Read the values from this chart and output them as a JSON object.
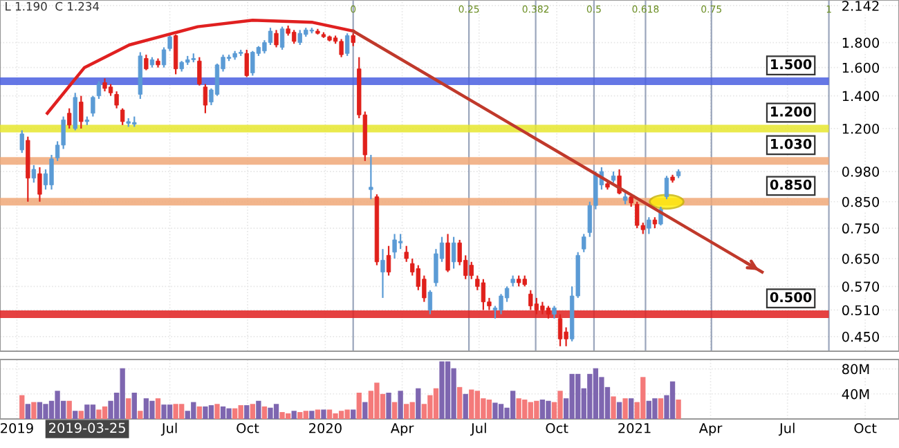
{
  "chart_data": [
    {
      "type": "candlestick",
      "annotations": [
        "L 1.190  C 1.234"
      ],
      "x": [
        "2019-01-07",
        "2019-01-14",
        "2019-01-21",
        "2019-01-28",
        "2019-02-04",
        "2019-02-11",
        "2019-02-18",
        "2019-02-25",
        "2019-03-04",
        "2019-03-11",
        "2019-03-18",
        "2019-03-25",
        "2019-04-01",
        "2019-04-08",
        "2019-04-15",
        "2019-04-22",
        "2019-04-29",
        "2019-05-06",
        "2019-05-13",
        "2019-05-20",
        "2019-05-27",
        "2019-06-03",
        "2019-06-10",
        "2019-06-17",
        "2019-06-24",
        "2019-07-01",
        "2019-07-08",
        "2019-07-15",
        "2019-07-22",
        "2019-07-29",
        "2019-08-05",
        "2019-08-12",
        "2019-08-19",
        "2019-08-26",
        "2019-09-02",
        "2019-09-09",
        "2019-09-16",
        "2019-09-23",
        "2019-09-30",
        "2019-10-07",
        "2019-10-14",
        "2019-10-21",
        "2019-10-28",
        "2019-11-04",
        "2019-11-11",
        "2019-11-18",
        "2019-11-25",
        "2019-12-02",
        "2019-12-09",
        "2019-12-16",
        "2019-12-23",
        "2019-12-30",
        "2020-01-06",
        "2020-01-13",
        "2020-01-20",
        "2020-01-27",
        "2020-02-03",
        "2020-02-10",
        "2020-02-17",
        "2020-02-24",
        "2020-03-02",
        "2020-03-09",
        "2020-03-16",
        "2020-03-23",
        "2020-03-30",
        "2020-04-06",
        "2020-04-13",
        "2020-04-20",
        "2020-04-27",
        "2020-05-04",
        "2020-05-11",
        "2020-05-18",
        "2020-05-25",
        "2020-06-01",
        "2020-06-08",
        "2020-06-15",
        "2020-06-22",
        "2020-06-29",
        "2020-07-06",
        "2020-07-13",
        "2020-07-20",
        "2020-07-27",
        "2020-08-03",
        "2020-08-10",
        "2020-08-17",
        "2020-08-24",
        "2020-08-31",
        "2020-09-07",
        "2020-09-14",
        "2020-09-21",
        "2020-09-28",
        "2020-10-05",
        "2020-10-12",
        "2020-10-19",
        "2020-10-26",
        "2020-11-02",
        "2020-11-09",
        "2020-11-16",
        "2020-11-23",
        "2020-11-30",
        "2020-12-07",
        "2020-12-14",
        "2020-12-21",
        "2020-12-28",
        "2021-01-04",
        "2021-01-11",
        "2021-01-18",
        "2021-01-25",
        "2021-02-01",
        "2021-02-08",
        "2021-02-15",
        "2021-02-22"
      ],
      "ohlc": [
        [
          1.085,
          1.19,
          1.07,
          1.17
        ],
        [
          1.135,
          1.155,
          0.85,
          0.95
        ],
        [
          0.95,
          1.01,
          0.93,
          0.99
        ],
        [
          0.97,
          1.0,
          0.85,
          0.88
        ],
        [
          0.92,
          0.99,
          0.9,
          0.97
        ],
        [
          0.92,
          1.06,
          0.9,
          1.04
        ],
        [
          1.045,
          1.13,
          1.03,
          1.11
        ],
        [
          1.11,
          1.27,
          1.09,
          1.25
        ],
        [
          1.29,
          1.32,
          1.2,
          1.22
        ],
        [
          1.2,
          1.42,
          1.19,
          1.39
        ],
        [
          1.36,
          1.4,
          1.2,
          1.24
        ],
        [
          1.24,
          1.27,
          1.22,
          1.25
        ],
        [
          1.29,
          1.4,
          1.27,
          1.39
        ],
        [
          1.4,
          1.5,
          1.38,
          1.48
        ],
        [
          1.49,
          1.52,
          1.43,
          1.45
        ],
        [
          1.46,
          1.48,
          1.4,
          1.42
        ],
        [
          1.41,
          1.43,
          1.32,
          1.34
        ],
        [
          1.31,
          1.32,
          1.22,
          1.24
        ],
        [
          1.23,
          1.26,
          1.21,
          1.24
        ],
        [
          1.225,
          1.27,
          1.21,
          1.235
        ],
        [
          1.41,
          1.72,
          1.38,
          1.69
        ],
        [
          1.67,
          1.7,
          1.58,
          1.59
        ],
        [
          1.62,
          1.68,
          1.6,
          1.66
        ],
        [
          1.65,
          1.67,
          1.6,
          1.62
        ],
        [
          1.62,
          1.76,
          1.6,
          1.74
        ],
        [
          1.75,
          1.87,
          1.73,
          1.85
        ],
        [
          1.86,
          1.87,
          1.55,
          1.59
        ],
        [
          1.59,
          1.65,
          1.57,
          1.64
        ],
        [
          1.64,
          1.69,
          1.62,
          1.66
        ],
        [
          1.66,
          1.71,
          1.64,
          1.67
        ],
        [
          1.65,
          1.68,
          1.47,
          1.48
        ],
        [
          1.46,
          1.48,
          1.29,
          1.34
        ],
        [
          1.36,
          1.45,
          1.34,
          1.44
        ],
        [
          1.41,
          1.63,
          1.4,
          1.62
        ],
        [
          1.59,
          1.7,
          1.57,
          1.68
        ],
        [
          1.67,
          1.7,
          1.65,
          1.68
        ],
        [
          1.68,
          1.73,
          1.66,
          1.71
        ],
        [
          1.71,
          1.74,
          1.69,
          1.72
        ],
        [
          1.71,
          1.74,
          1.53,
          1.54
        ],
        [
          1.56,
          1.73,
          1.54,
          1.72
        ],
        [
          1.71,
          1.77,
          1.69,
          1.76
        ],
        [
          1.73,
          1.82,
          1.71,
          1.8
        ],
        [
          1.8,
          1.93,
          1.78,
          1.9
        ],
        [
          1.88,
          1.91,
          1.76,
          1.78
        ],
        [
          1.76,
          1.94,
          1.74,
          1.92
        ],
        [
          1.92,
          1.95,
          1.86,
          1.88
        ],
        [
          1.89,
          1.91,
          1.79,
          1.81
        ],
        [
          1.8,
          1.91,
          1.78,
          1.88
        ],
        [
          1.87,
          1.93,
          1.85,
          1.91
        ],
        [
          1.9,
          1.93,
          1.88,
          1.91
        ],
        [
          1.9,
          1.92,
          1.87,
          1.88
        ],
        [
          1.87,
          1.89,
          1.84,
          1.85
        ],
        [
          1.85,
          1.86,
          1.81,
          1.82
        ],
        [
          1.84,
          1.86,
          1.79,
          1.81
        ],
        [
          1.81,
          1.83,
          1.68,
          1.7
        ],
        [
          1.71,
          1.88,
          1.69,
          1.86
        ],
        [
          1.86,
          1.88,
          1.77,
          1.8
        ],
        [
          1.59,
          1.68,
          1.26,
          1.28
        ],
        [
          1.28,
          1.3,
          1.03,
          1.06
        ],
        [
          0.9,
          1.06,
          0.86,
          0.91
        ],
        [
          0.87,
          0.88,
          0.63,
          0.64
        ],
        [
          0.61,
          0.68,
          0.54,
          0.645
        ],
        [
          0.66,
          0.69,
          0.6,
          0.61
        ],
        [
          0.67,
          0.73,
          0.65,
          0.71
        ],
        [
          0.7,
          0.73,
          0.68,
          0.705
        ],
        [
          0.67,
          0.69,
          0.64,
          0.65
        ],
        [
          0.635,
          0.65,
          0.6,
          0.61
        ],
        [
          0.62,
          0.63,
          0.56,
          0.57
        ],
        [
          0.59,
          0.6,
          0.53,
          0.54
        ],
        [
          0.51,
          0.56,
          0.5,
          0.555
        ],
        [
          0.58,
          0.68,
          0.57,
          0.665
        ],
        [
          0.65,
          0.72,
          0.64,
          0.7
        ],
        [
          0.7,
          0.73,
          0.61,
          0.615
        ],
        [
          0.64,
          0.72,
          0.62,
          0.7
        ],
        [
          0.7,
          0.71,
          0.63,
          0.64
        ],
        [
          0.645,
          0.66,
          0.59,
          0.6
        ],
        [
          0.63,
          0.64,
          0.59,
          0.6
        ],
        [
          0.59,
          0.6,
          0.56,
          0.57
        ],
        [
          0.58,
          0.59,
          0.51,
          0.53
        ],
        [
          0.53,
          0.54,
          0.51,
          0.52
        ],
        [
          0.51,
          0.52,
          0.49,
          0.515
        ],
        [
          0.51,
          0.55,
          0.5,
          0.545
        ],
        [
          0.54,
          0.57,
          0.53,
          0.565
        ],
        [
          0.58,
          0.6,
          0.57,
          0.59
        ],
        [
          0.59,
          0.6,
          0.57,
          0.58
        ],
        [
          0.59,
          0.6,
          0.57,
          0.575
        ],
        [
          0.55,
          0.56,
          0.51,
          0.52
        ],
        [
          0.525,
          0.54,
          0.5,
          0.51
        ],
        [
          0.52,
          0.53,
          0.5,
          0.51
        ],
        [
          0.515,
          0.52,
          0.49,
          0.5
        ],
        [
          0.5,
          0.52,
          0.49,
          0.515
        ],
        [
          0.49,
          0.5,
          0.43,
          0.445
        ],
        [
          0.46,
          0.47,
          0.43,
          0.445
        ],
        [
          0.445,
          0.57,
          0.44,
          0.545
        ],
        [
          0.545,
          0.67,
          0.54,
          0.66
        ],
        [
          0.68,
          0.73,
          0.67,
          0.72
        ],
        [
          0.735,
          0.85,
          0.72,
          0.835
        ],
        [
          0.835,
          0.98,
          0.82,
          0.965
        ],
        [
          0.92,
          1.0,
          0.9,
          0.98
        ],
        [
          0.925,
          0.94,
          0.9,
          0.91
        ],
        [
          0.94,
          0.98,
          0.93,
          0.96
        ],
        [
          0.96,
          0.99,
          0.88,
          0.885
        ],
        [
          0.855,
          0.89,
          0.84,
          0.87
        ],
        [
          0.87,
          0.88,
          0.83,
          0.845
        ],
        [
          0.84,
          0.85,
          0.75,
          0.76
        ],
        [
          0.76,
          0.77,
          0.73,
          0.745
        ],
        [
          0.75,
          0.79,
          0.73,
          0.78
        ],
        [
          0.78,
          0.79,
          0.75,
          0.765
        ],
        [
          0.765,
          0.83,
          0.76,
          0.82
        ],
        [
          0.87,
          0.96,
          0.86,
          0.95
        ],
        [
          0.955,
          0.965,
          0.93,
          0.94
        ],
        [
          0.96,
          0.99,
          0.95,
          0.98
        ]
      ],
      "colors": [
        "#5b9bd5",
        "#e0201b",
        "#5b9bd5",
        "#e0201b",
        "#5b9bd5",
        "#5b9bd5",
        "#5b9bd5",
        "#5b9bd5",
        "#e0201b",
        "#5b9bd5",
        "#e0201b",
        "#5b9bd5",
        "#5b9bd5",
        "#5b9bd5",
        "#e0201b",
        "#e0201b",
        "#e0201b",
        "#e0201b",
        "#5b9bd5",
        "#5b9bd5",
        "#5b9bd5",
        "#e0201b",
        "#5b9bd5",
        "#e0201b",
        "#5b9bd5",
        "#5b9bd5",
        "#e0201b",
        "#5b9bd5",
        "#5b9bd5",
        "#5b9bd5",
        "#e0201b",
        "#e0201b",
        "#5b9bd5",
        "#5b9bd5",
        "#5b9bd5",
        "#5b9bd5",
        "#5b9bd5",
        "#5b9bd5",
        "#e0201b",
        "#5b9bd5",
        "#5b9bd5",
        "#5b9bd5",
        "#5b9bd5",
        "#e0201b",
        "#5b9bd5",
        "#e0201b",
        "#e0201b",
        "#5b9bd5",
        "#5b9bd5",
        "#5b9bd5",
        "#e0201b",
        "#e0201b",
        "#e0201b",
        "#e0201b",
        "#e0201b",
        "#5b9bd5",
        "#e0201b",
        "#e0201b",
        "#e0201b",
        "#5b9bd5",
        "#e0201b",
        "#5b9bd5",
        "#e0201b",
        "#5b9bd5",
        "#5b9bd5",
        "#e0201b",
        "#e0201b",
        "#e0201b",
        "#e0201b",
        "#5b9bd5",
        "#5b9bd5",
        "#5b9bd5",
        "#e0201b",
        "#5b9bd5",
        "#e0201b",
        "#e0201b",
        "#e0201b",
        "#e0201b",
        "#e0201b",
        "#e0201b",
        "#5b9bd5",
        "#5b9bd5",
        "#5b9bd5",
        "#5b9bd5",
        "#e0201b",
        "#e0201b",
        "#e0201b",
        "#e0201b",
        "#e0201b",
        "#e0201b",
        "#5b9bd5",
        "#e0201b",
        "#e0201b",
        "#5b9bd5",
        "#5b9bd5",
        "#5b9bd5",
        "#5b9bd5",
        "#5b9bd5",
        "#5b9bd5",
        "#e0201b",
        "#5b9bd5",
        "#e0201b",
        "#5b9bd5",
        "#e0201b",
        "#e0201b",
        "#e0201b",
        "#5b9bd5",
        "#e0201b",
        "#5b9bd5",
        "#5b9bd5",
        "#e0201b",
        "#5b9bd5"
      ],
      "series": [
        {
          "type": "line",
          "color": "#e02020",
          "x": [
            "2019-02-06",
            "2019-03-22",
            "2019-05-14",
            "2019-08-03",
            "2019-10-07",
            "2019-12-17",
            "2020-02-03"
          ],
          "values": [
            1.29,
            1.6,
            1.78,
            1.94,
            2.0,
            1.98,
            1.9
          ]
        },
        {
          "type": "line",
          "color": "#c0392b",
          "x": [
            "2020-02-03",
            "2021-06-01"
          ],
          "values": [
            1.9,
            0.61
          ]
        }
      ],
      "ref_lines": [
        {
          "axis": "y",
          "value": 1.5,
          "label": "1.500",
          "color": "#4a5fe0"
        },
        {
          "axis": "y",
          "value": 1.2,
          "label": "1.200",
          "color": "#e6e62e"
        },
        {
          "axis": "y",
          "value": 1.03,
          "label": "1.030",
          "color": "#f0a878"
        },
        {
          "axis": "y",
          "value": 0.85,
          "label": "0.850",
          "color": "#f0a878"
        },
        {
          "axis": "y",
          "value": 0.5,
          "label": "0.500",
          "color": "#e02020"
        },
        {
          "axis": "x",
          "value": "2020-02-03",
          "label": "0",
          "color": "#7080a0"
        },
        {
          "axis": "x",
          "value": "2020-06-19",
          "label": "0.25",
          "color": "#7080a0"
        },
        {
          "axis": "x",
          "value": "2020-09-06",
          "label": "0.382",
          "color": "#7080a0"
        },
        {
          "axis": "x",
          "value": "2020-11-14",
          "label": "0.5",
          "color": "#7080a0"
        },
        {
          "axis": "x",
          "value": "2021-01-14",
          "label": "0.618",
          "color": "#7080a0"
        },
        {
          "axis": "x",
          "value": "2021-04-02",
          "label": "0.75",
          "color": "#7080a0"
        },
        {
          "axis": "x",
          "value": "2021-08-19",
          "label": "1",
          "color": "#7080a0"
        }
      ],
      "log": "y",
      "xlim": [
        "2018-12-12",
        "2021-11-10"
      ],
      "ylim": [
        0.42,
        2.2
      ],
      "yticks": [
        {
          "value": 0.45,
          "label": "0.450"
        },
        {
          "value": 0.51,
          "label": "0.510"
        },
        {
          "value": 0.57,
          "label": "0.570"
        },
        {
          "value": 0.65,
          "label": "0.650"
        },
        {
          "value": 0.75,
          "label": "0.750"
        },
        {
          "value": 0.85,
          "label": "0.850"
        },
        {
          "value": 0.98,
          "label": "0.980"
        },
        {
          "value": 1.2,
          "label": "1.200"
        },
        {
          "value": 1.4,
          "label": "1.400"
        },
        {
          "value": 1.6,
          "label": "1.600"
        },
        {
          "value": 1.8,
          "label": "1.800"
        },
        {
          "value": 2.142,
          "label": "2.142"
        }
      ],
      "tick_labels": "y",
      "grid": true
    },
    {
      "type": "bar",
      "annotations": [
        "2019-03-25"
      ],
      "x": [
        "2019-01-07",
        "2019-01-14",
        "2019-01-21",
        "2019-01-28",
        "2019-02-04",
        "2019-02-11",
        "2019-02-18",
        "2019-02-25",
        "2019-03-04",
        "2019-03-11",
        "2019-03-18",
        "2019-03-25",
        "2019-04-01",
        "2019-04-08",
        "2019-04-15",
        "2019-04-22",
        "2019-04-29",
        "2019-05-06",
        "2019-05-13",
        "2019-05-20",
        "2019-05-27",
        "2019-06-03",
        "2019-06-10",
        "2019-06-17",
        "2019-06-24",
        "2019-07-01",
        "2019-07-08",
        "2019-07-15",
        "2019-07-22",
        "2019-07-29",
        "2019-08-05",
        "2019-08-12",
        "2019-08-19",
        "2019-08-26",
        "2019-09-02",
        "2019-09-09",
        "2019-09-16",
        "2019-09-23",
        "2019-09-30",
        "2019-10-07",
        "2019-10-14",
        "2019-10-21",
        "2019-10-28",
        "2019-11-04",
        "2019-11-11",
        "2019-11-18",
        "2019-11-25",
        "2019-12-02",
        "2019-12-09",
        "2019-12-16",
        "2019-12-23",
        "2019-12-30",
        "2020-01-06",
        "2020-01-13",
        "2020-01-20",
        "2020-01-27",
        "2020-02-03",
        "2020-02-10",
        "2020-02-17",
        "2020-02-24",
        "2020-03-02",
        "2020-03-09",
        "2020-03-16",
        "2020-03-23",
        "2020-03-30",
        "2020-04-06",
        "2020-04-13",
        "2020-04-20",
        "2020-04-27",
        "2020-05-04",
        "2020-05-11",
        "2020-05-18",
        "2020-05-25",
        "2020-06-01",
        "2020-06-08",
        "2020-06-15",
        "2020-06-22",
        "2020-06-29",
        "2020-07-06",
        "2020-07-13",
        "2020-07-20",
        "2020-07-27",
        "2020-08-03",
        "2020-08-10",
        "2020-08-17",
        "2020-08-24",
        "2020-08-31",
        "2020-09-07",
        "2020-09-14",
        "2020-09-21",
        "2020-09-28",
        "2020-10-05",
        "2020-10-12",
        "2020-10-19",
        "2020-10-26",
        "2020-11-02",
        "2020-11-09",
        "2020-11-16",
        "2020-11-23",
        "2020-11-30",
        "2020-12-07",
        "2020-12-14",
        "2020-12-21",
        "2020-12-28",
        "2021-01-04",
        "2021-01-11",
        "2021-01-18",
        "2021-01-25",
        "2021-02-01",
        "2021-02-08",
        "2021-02-15",
        "2021-02-22"
      ],
      "values": [
        38,
        24,
        27,
        27,
        24,
        29,
        45,
        29,
        29,
        13,
        13,
        23,
        23,
        15,
        20,
        29,
        42,
        81,
        33,
        42,
        13,
        33,
        29,
        33,
        23,
        23,
        24,
        24,
        13,
        27,
        20,
        20,
        22,
        24,
        20,
        17,
        17,
        22,
        22,
        24,
        29,
        20,
        18,
        24,
        11,
        9,
        13,
        11,
        13,
        13,
        15,
        15,
        15,
        9,
        13,
        15,
        15,
        42,
        27,
        45,
        58,
        40,
        42,
        27,
        45,
        24,
        27,
        49,
        24,
        38,
        49,
        92,
        92,
        81,
        51,
        40,
        47,
        45,
        33,
        31,
        26,
        24,
        18,
        45,
        33,
        31,
        27,
        29,
        31,
        29,
        27,
        45,
        33,
        72,
        72,
        49,
        72,
        81,
        67,
        51,
        36,
        27,
        33,
        33,
        27,
        67,
        29,
        33,
        33,
        38,
        60,
        31
      ],
      "colors": [
        "#f47a7a",
        "#7e66b0",
        "#f47a7a",
        "#7e66b0",
        "#7e66b0",
        "#7e66b0",
        "#7e66b0",
        "#7e66b0",
        "#f47a7a",
        "#7e66b0",
        "#f47a7a",
        "#7e66b0",
        "#7e66b0",
        "#f47a7a",
        "#f47a7a",
        "#7e66b0",
        "#7e66b0",
        "#7e66b0",
        "#f47a7a",
        "#7e66b0",
        "#f47a7a",
        "#7e66b0",
        "#7e66b0",
        "#f47a7a",
        "#7e66b0",
        "#7e66b0",
        "#f47a7a",
        "#f47a7a",
        "#7e66b0",
        "#7e66b0",
        "#f47a7a",
        "#7e66b0",
        "#7e66b0",
        "#f47a7a",
        "#7e66b0",
        "#7e66b0",
        "#f47a7a",
        "#f47a7a",
        "#7e66b0",
        "#f47a7a",
        "#7e66b0",
        "#f47a7a",
        "#7e66b0",
        "#7e66b0",
        "#f47a7a",
        "#f47a7a",
        "#7e66b0",
        "#f47a7a",
        "#f47a7a",
        "#7e66b0",
        "#f47a7a",
        "#7e66b0",
        "#f47a7a",
        "#f47a7a",
        "#f47a7a",
        "#f47a7a",
        "#7e66b0",
        "#f47a7a",
        "#7e66b0",
        "#f47a7a",
        "#f47a7a",
        "#f47a7a",
        "#7e66b0",
        "#f47a7a",
        "#7e66b0",
        "#f47a7a",
        "#f47a7a",
        "#7e66b0",
        "#f47a7a",
        "#f47a7a",
        "#f47a7a",
        "#7e66b0",
        "#7e66b0",
        "#7e66b0",
        "#f47a7a",
        "#7e66b0",
        "#f47a7a",
        "#f47a7a",
        "#f47a7a",
        "#f47a7a",
        "#7e66b0",
        "#7e66b0",
        "#7e66b0",
        "#7e66b0",
        "#f47a7a",
        "#f47a7a",
        "#f47a7a",
        "#f47a7a",
        "#7e66b0",
        "#7e66b0",
        "#f47a7a",
        "#f47a7a",
        "#7e66b0",
        "#7e66b0",
        "#7e66b0",
        "#7e66b0",
        "#7e66b0",
        "#7e66b0",
        "#7e66b0",
        "#7e66b0",
        "#f47a7a",
        "#7e66b0",
        "#f47a7a",
        "#7e66b0",
        "#f47a7a",
        "#f47a7a",
        "#7e66b0",
        "#7e66b0",
        "#f47a7a",
        "#7e66b0",
        "#7e66b0",
        "#f47a7a"
      ],
      "xlim": [
        "2018-12-12",
        "2021-11-10"
      ],
      "xticks": [
        {
          "value": "2019-01-01",
          "label": "2019"
        },
        {
          "value": "2019-07-01",
          "label": "Jul"
        },
        {
          "value": "2019-10-01",
          "label": "Oct"
        },
        {
          "value": "2020-01-01",
          "label": "2020"
        },
        {
          "value": "2020-04-01",
          "label": "Apr"
        },
        {
          "value": "2020-07-01",
          "label": "Jul"
        },
        {
          "value": "2020-10-01",
          "label": "Oct"
        },
        {
          "value": "2021-01-01",
          "label": "2021"
        },
        {
          "value": "2021-04-01",
          "label": "Apr"
        },
        {
          "value": "2021-07-01",
          "label": "Jul"
        },
        {
          "value": "2021-10-01",
          "label": "Oct"
        }
      ],
      "ylim": [
        0,
        95
      ],
      "yticks": [
        {
          "value": 40,
          "label": "40M"
        },
        {
          "value": 80,
          "label": "80M"
        }
      ],
      "grid": true
    }
  ]
}
